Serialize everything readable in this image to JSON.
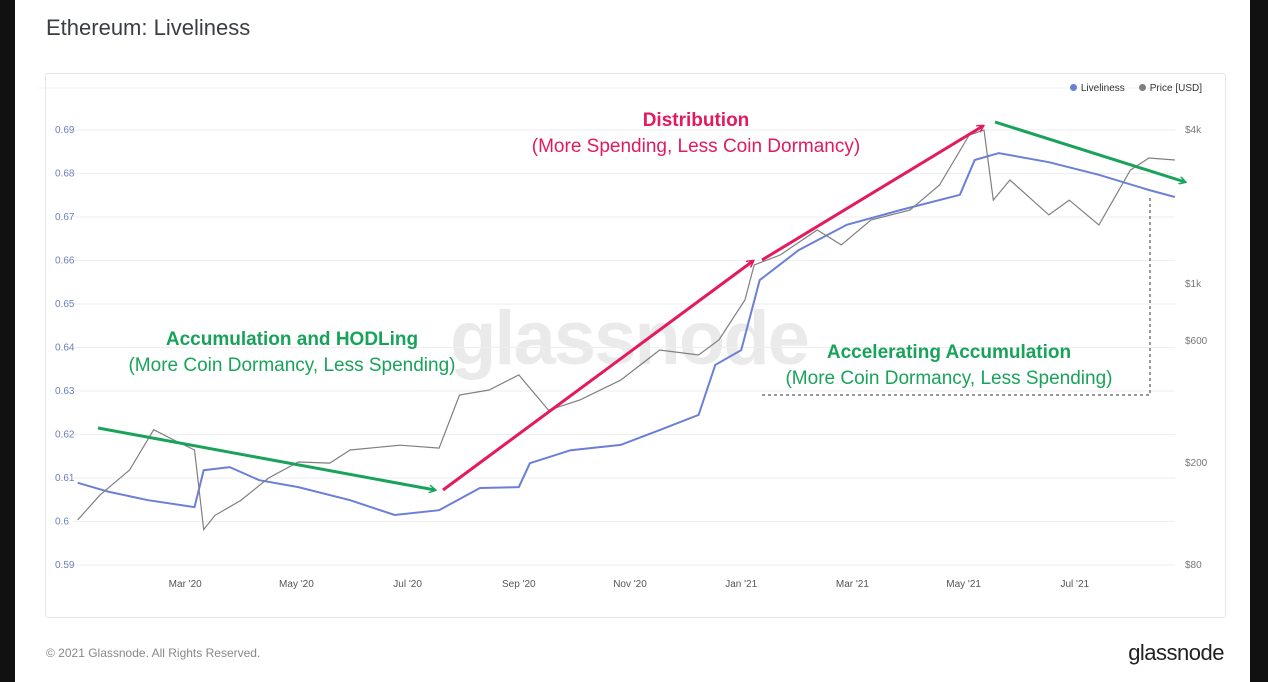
{
  "title": "Ethereum: Liveliness",
  "legend": [
    {
      "label": "Liveliness",
      "color": "#6b7fd7"
    },
    {
      "label": "Price [USD]",
      "color": "#7f7f7f"
    }
  ],
  "watermark": "glassnode",
  "footer": "© 2021 Glassnode. All Rights Reserved.",
  "logo": "glassnode",
  "annotations": {
    "accumulation": {
      "title": "Accumulation and HODLing",
      "subtitle": "(More Coin Dormancy, Less Spending)",
      "color": "#19a35a"
    },
    "distribution": {
      "title": "Distribution",
      "subtitle": "(More Spending, Less Coin Dormancy)",
      "color": "#e4195f"
    },
    "accelerating": {
      "title": "Accelerating Accumulation",
      "subtitle": "(More Coin Dormancy, Less Spending)",
      "color": "#19a35a"
    }
  },
  "chart_data": {
    "type": "line",
    "title": "Ethereum: Liveliness",
    "x_ticks": [
      "Mar '20",
      "May '20",
      "Jul '20",
      "Sep '20",
      "Nov '20",
      "Jan '21",
      "Mar '21",
      "May '21",
      "Jul '21"
    ],
    "x_tick_dates": [
      "2020-03-01",
      "2020-05-01",
      "2020-07-01",
      "2020-09-01",
      "2020-11-01",
      "2021-01-01",
      "2021-03-01",
      "2021-05-01",
      "2021-07-01"
    ],
    "xlim": [
      "2020-01-01",
      "2021-08-27"
    ],
    "y_left": {
      "label": "Liveliness",
      "ticks": [
        "0.69",
        "0.68",
        "0.67",
        "0.66",
        "0.65",
        "0.64",
        "0.63",
        "0.62",
        "0.61",
        "0.6",
        "0.59"
      ],
      "ylim": [
        0.59,
        0.69
      ]
    },
    "y_right": {
      "label": "Price [USD]",
      "scale": "log",
      "ticks": [
        {
          "label": "$4k",
          "value": 4000
        },
        {
          "label": "$1k",
          "value": 1000
        },
        {
          "label": "$600",
          "value": 600
        },
        {
          "label": "$200",
          "value": 200
        },
        {
          "label": "$80",
          "value": 80
        }
      ],
      "ylim": [
        80,
        4000
      ]
    },
    "grid": true,
    "legend_position": "top-right",
    "series": [
      {
        "name": "Liveliness",
        "axis": "left",
        "color": "#6b7fd7",
        "points": [
          [
            "2020-01-03",
            0.6089
          ],
          [
            "2020-01-20",
            0.6068
          ],
          [
            "2020-02-11",
            0.6049
          ],
          [
            "2020-03-06",
            0.6033
          ],
          [
            "2020-03-11",
            0.6118
          ],
          [
            "2020-03-25",
            0.6125
          ],
          [
            "2020-04-11",
            0.6095
          ],
          [
            "2020-05-02",
            0.6079
          ],
          [
            "2020-05-30",
            0.6049
          ],
          [
            "2020-06-24",
            0.6015
          ],
          [
            "2020-07-18",
            0.6026
          ],
          [
            "2020-08-10",
            0.6077
          ],
          [
            "2020-09-01",
            0.6079
          ],
          [
            "2020-09-07",
            0.6134
          ],
          [
            "2020-09-29",
            0.6164
          ],
          [
            "2020-10-26",
            0.6176
          ],
          [
            "2020-11-17",
            0.621
          ],
          [
            "2020-12-08",
            0.6245
          ],
          [
            "2020-12-17",
            0.636
          ],
          [
            "2020-12-31",
            0.6394
          ],
          [
            "2021-01-11",
            0.6555
          ],
          [
            "2021-02-02",
            0.6624
          ],
          [
            "2021-02-28",
            0.6682
          ],
          [
            "2021-03-27",
            0.6716
          ],
          [
            "2021-04-29",
            0.6751
          ],
          [
            "2021-05-07",
            0.6831
          ],
          [
            "2021-05-20",
            0.6847
          ],
          [
            "2021-06-17",
            0.6826
          ],
          [
            "2021-07-14",
            0.6797
          ],
          [
            "2021-08-11",
            0.6762
          ],
          [
            "2021-08-25",
            0.6746
          ]
        ]
      },
      {
        "name": "Price [USD]",
        "axis": "right",
        "color": "#7f7f7f",
        "points": [
          [
            "2020-01-03",
            120
          ],
          [
            "2020-01-15",
            150
          ],
          [
            "2020-02-01",
            188
          ],
          [
            "2020-02-14",
            270
          ],
          [
            "2020-02-25",
            246
          ],
          [
            "2020-03-06",
            225
          ],
          [
            "2020-03-11",
            110
          ],
          [
            "2020-03-17",
            125
          ],
          [
            "2020-03-31",
            143
          ],
          [
            "2020-04-16",
            175
          ],
          [
            "2020-05-02",
            202
          ],
          [
            "2020-05-19",
            200
          ],
          [
            "2020-05-30",
            225
          ],
          [
            "2020-06-27",
            235
          ],
          [
            "2020-07-18",
            229
          ],
          [
            "2020-07-29",
            369
          ],
          [
            "2020-08-15",
            386
          ],
          [
            "2020-09-01",
            442
          ],
          [
            "2020-09-17",
            322
          ],
          [
            "2020-10-04",
            353
          ],
          [
            "2020-10-26",
            422
          ],
          [
            "2020-11-17",
            553
          ],
          [
            "2020-12-08",
            529
          ],
          [
            "2020-12-19",
            606
          ],
          [
            "2021-01-03",
            867
          ],
          [
            "2021-01-08",
            1188
          ],
          [
            "2021-01-22",
            1300
          ],
          [
            "2021-02-12",
            1628
          ],
          [
            "2021-02-25",
            1423
          ],
          [
            "2021-03-11",
            1781
          ],
          [
            "2021-04-02",
            1947
          ],
          [
            "2021-04-18",
            2439
          ],
          [
            "2021-05-04",
            3821
          ],
          [
            "2021-05-12",
            4000
          ],
          [
            "2021-05-17",
            2130
          ],
          [
            "2021-05-26",
            2552
          ],
          [
            "2021-06-17",
            1864
          ],
          [
            "2021-06-28",
            2130
          ],
          [
            "2021-07-14",
            1702
          ],
          [
            "2021-07-31",
            2790
          ],
          [
            "2021-08-11",
            3110
          ],
          [
            "2021-08-25",
            3053
          ]
        ]
      }
    ]
  }
}
